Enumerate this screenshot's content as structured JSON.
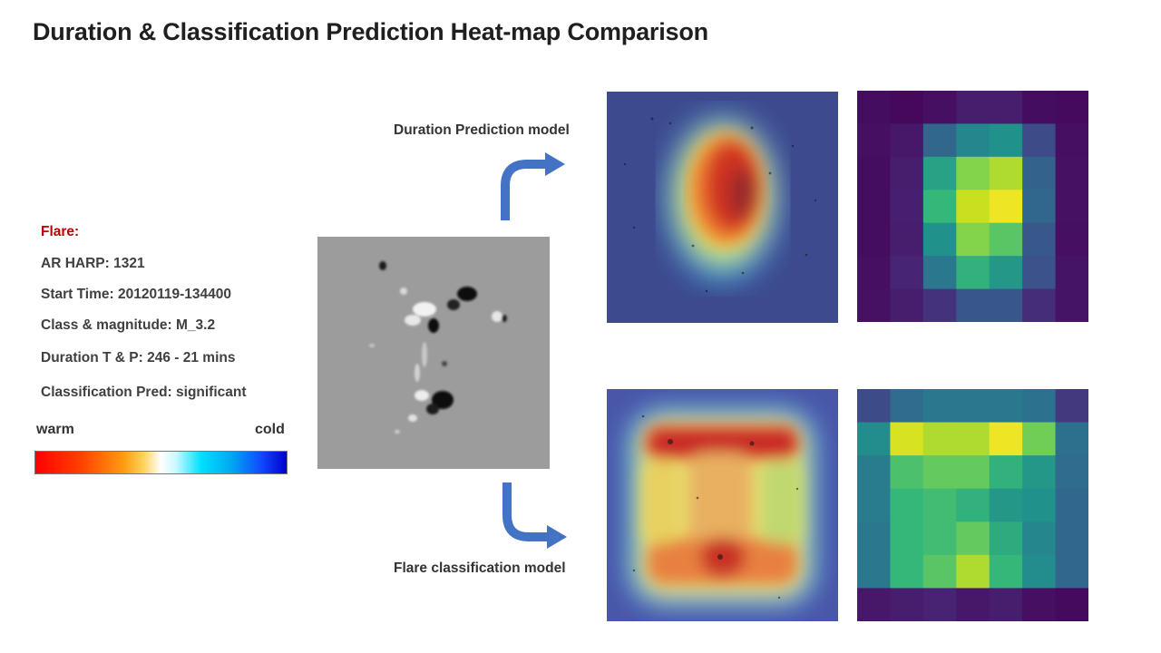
{
  "title": "Duration & Classification Prediction Heat-map Comparison",
  "flare_info": {
    "header": "Flare:",
    "harp": "AR HARP: 1321",
    "start_time": "Start Time: 20120119-134400",
    "class_magnitude": "Class & magnitude: M_3.2",
    "duration": "Duration T & P: 246 - 21 mins",
    "classification": "Classification Pred: significant"
  },
  "colorscale": {
    "warm_label": "warm",
    "cold_label": "cold"
  },
  "models": {
    "duration_label": "Duration Prediction model",
    "classification_label": "Flare classification model"
  },
  "colors": {
    "arrow": "#4472c4",
    "flare_header": "#c00000"
  },
  "grid_duration": [
    [
      0.05,
      0.03,
      0.06,
      0.12,
      0.12,
      0.05,
      0.04
    ],
    [
      0.06,
      0.1,
      0.4,
      0.55,
      0.6,
      0.28,
      0.06
    ],
    [
      0.05,
      0.12,
      0.65,
      0.85,
      0.9,
      0.38,
      0.07
    ],
    [
      0.05,
      0.13,
      0.72,
      0.93,
      0.98,
      0.4,
      0.07
    ],
    [
      0.05,
      0.12,
      0.6,
      0.85,
      0.78,
      0.33,
      0.06
    ],
    [
      0.06,
      0.15,
      0.48,
      0.7,
      0.62,
      0.3,
      0.08
    ],
    [
      0.07,
      0.12,
      0.2,
      0.32,
      0.32,
      0.18,
      0.08
    ]
  ],
  "grid_classification": [
    [
      0.28,
      0.42,
      0.48,
      0.48,
      0.48,
      0.45,
      0.22
    ],
    [
      0.58,
      0.95,
      0.9,
      0.9,
      0.98,
      0.82,
      0.44
    ],
    [
      0.5,
      0.76,
      0.8,
      0.8,
      0.7,
      0.62,
      0.42
    ],
    [
      0.5,
      0.72,
      0.74,
      0.7,
      0.62,
      0.6,
      0.4
    ],
    [
      0.48,
      0.72,
      0.74,
      0.8,
      0.68,
      0.55,
      0.4
    ],
    [
      0.48,
      0.72,
      0.78,
      0.9,
      0.72,
      0.58,
      0.4
    ],
    [
      0.1,
      0.12,
      0.14,
      0.1,
      0.12,
      0.06,
      0.04
    ]
  ]
}
